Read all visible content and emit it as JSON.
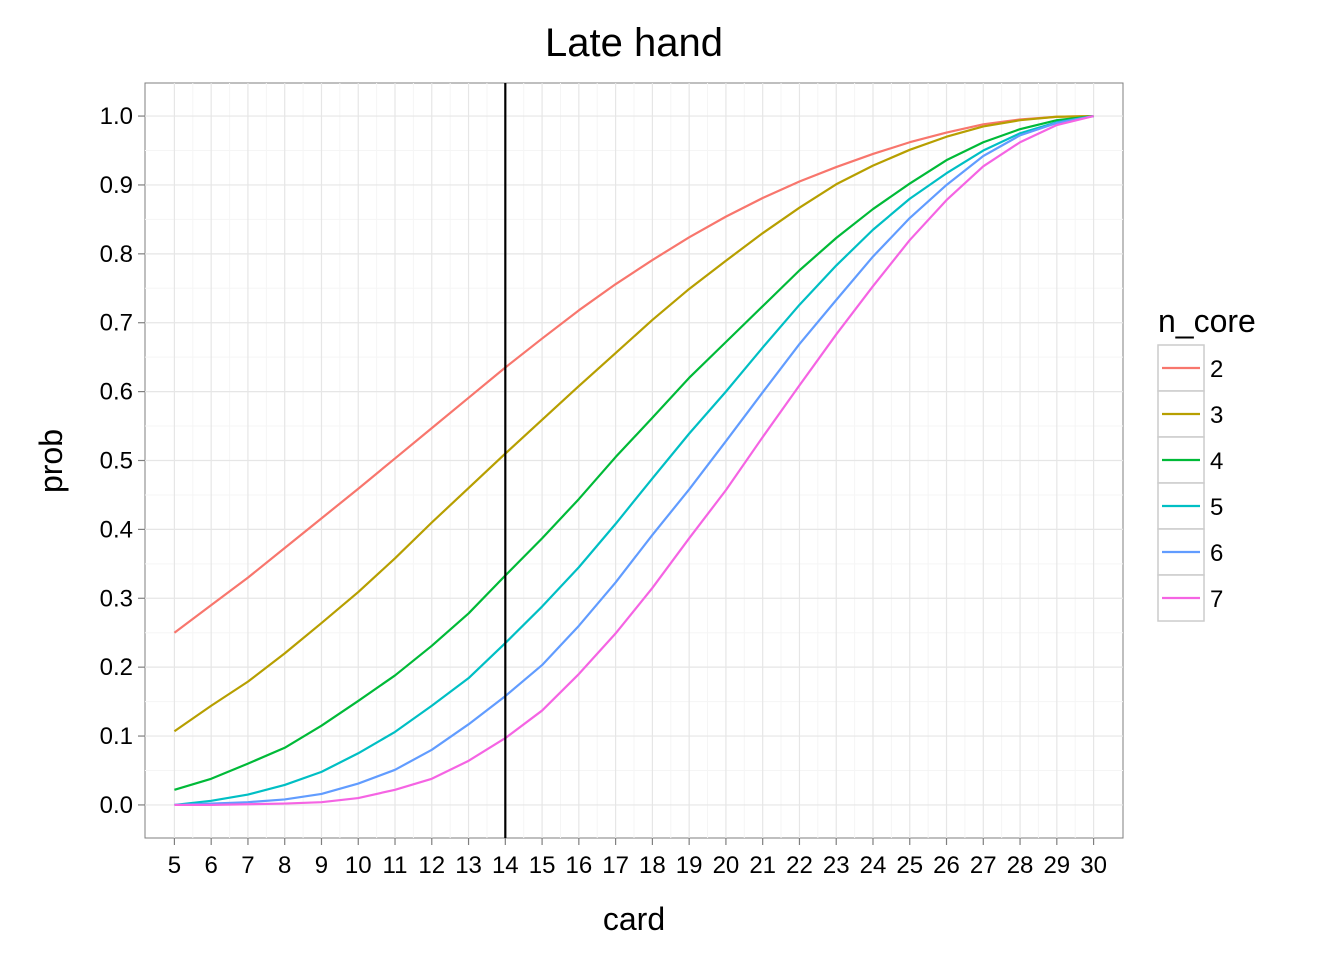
{
  "chart_data": {
    "type": "line",
    "title": "Late hand",
    "xlabel": "card",
    "ylabel": "prob",
    "xlim": [
      4.2,
      30.8
    ],
    "ylim": [
      -0.048,
      1.048
    ],
    "x": [
      5,
      6,
      7,
      8,
      9,
      10,
      11,
      12,
      13,
      14,
      15,
      16,
      17,
      18,
      19,
      20,
      21,
      22,
      23,
      24,
      25,
      26,
      27,
      28,
      29,
      30
    ],
    "x_tick_labels": [
      "5",
      "6",
      "7",
      "8",
      "9",
      "10",
      "11",
      "12",
      "13",
      "14",
      "15",
      "16",
      "17",
      "18",
      "19",
      "20",
      "21",
      "22",
      "23",
      "24",
      "25",
      "26",
      "27",
      "28",
      "29",
      "30"
    ],
    "y_ticks": [
      0.0,
      0.1,
      0.2,
      0.3,
      0.4,
      0.5,
      0.6,
      0.7,
      0.8,
      0.9,
      1.0
    ],
    "y_tick_labels": [
      "0.0",
      "0.1",
      "0.2",
      "0.3",
      "0.4",
      "0.5",
      "0.6",
      "0.7",
      "0.8",
      "0.9",
      "1.0"
    ],
    "vline_x": 14,
    "grid": true,
    "legend": {
      "title": "n_core",
      "position": "right"
    },
    "series": [
      {
        "name": "2",
        "color": "#F8766D",
        "values": [
          0.25,
          0.29,
          0.33,
          0.373,
          0.416,
          0.459,
          0.503,
          0.547,
          0.591,
          0.635,
          0.677,
          0.718,
          0.756,
          0.791,
          0.824,
          0.854,
          0.881,
          0.905,
          0.926,
          0.945,
          0.962,
          0.976,
          0.988,
          0.995,
          0.999,
          1.0
        ]
      },
      {
        "name": "3",
        "color": "#B79F00",
        "values": [
          0.107,
          0.144,
          0.179,
          0.22,
          0.264,
          0.309,
          0.358,
          0.41,
          0.46,
          0.51,
          0.559,
          0.608,
          0.656,
          0.704,
          0.749,
          0.79,
          0.83,
          0.867,
          0.901,
          0.928,
          0.951,
          0.97,
          0.985,
          0.994,
          0.999,
          1.0
        ]
      },
      {
        "name": "4",
        "color": "#00BA38",
        "values": [
          0.022,
          0.038,
          0.06,
          0.083,
          0.115,
          0.151,
          0.188,
          0.231,
          0.278,
          0.333,
          0.387,
          0.444,
          0.505,
          0.562,
          0.62,
          0.672,
          0.724,
          0.776,
          0.823,
          0.865,
          0.902,
          0.936,
          0.962,
          0.981,
          0.994,
          1.0
        ]
      },
      {
        "name": "5",
        "color": "#00BFC4",
        "values": [
          0.0,
          0.006,
          0.015,
          0.029,
          0.048,
          0.075,
          0.106,
          0.144,
          0.184,
          0.235,
          0.288,
          0.345,
          0.408,
          0.474,
          0.539,
          0.6,
          0.664,
          0.726,
          0.783,
          0.835,
          0.88,
          0.917,
          0.95,
          0.975,
          0.991,
          1.0
        ]
      },
      {
        "name": "6",
        "color": "#619CFF",
        "values": [
          0.0,
          0.002,
          0.004,
          0.008,
          0.016,
          0.031,
          0.051,
          0.08,
          0.117,
          0.158,
          0.203,
          0.26,
          0.323,
          0.392,
          0.458,
          0.528,
          0.599,
          0.669,
          0.733,
          0.796,
          0.852,
          0.9,
          0.942,
          0.972,
          0.99,
          1.0
        ]
      },
      {
        "name": "7",
        "color": "#F564E3",
        "values": [
          0.0,
          0.0,
          0.001,
          0.002,
          0.004,
          0.01,
          0.022,
          0.038,
          0.064,
          0.097,
          0.137,
          0.19,
          0.249,
          0.315,
          0.387,
          0.457,
          0.534,
          0.609,
          0.683,
          0.753,
          0.82,
          0.878,
          0.927,
          0.962,
          0.987,
          1.0
        ]
      }
    ]
  }
}
